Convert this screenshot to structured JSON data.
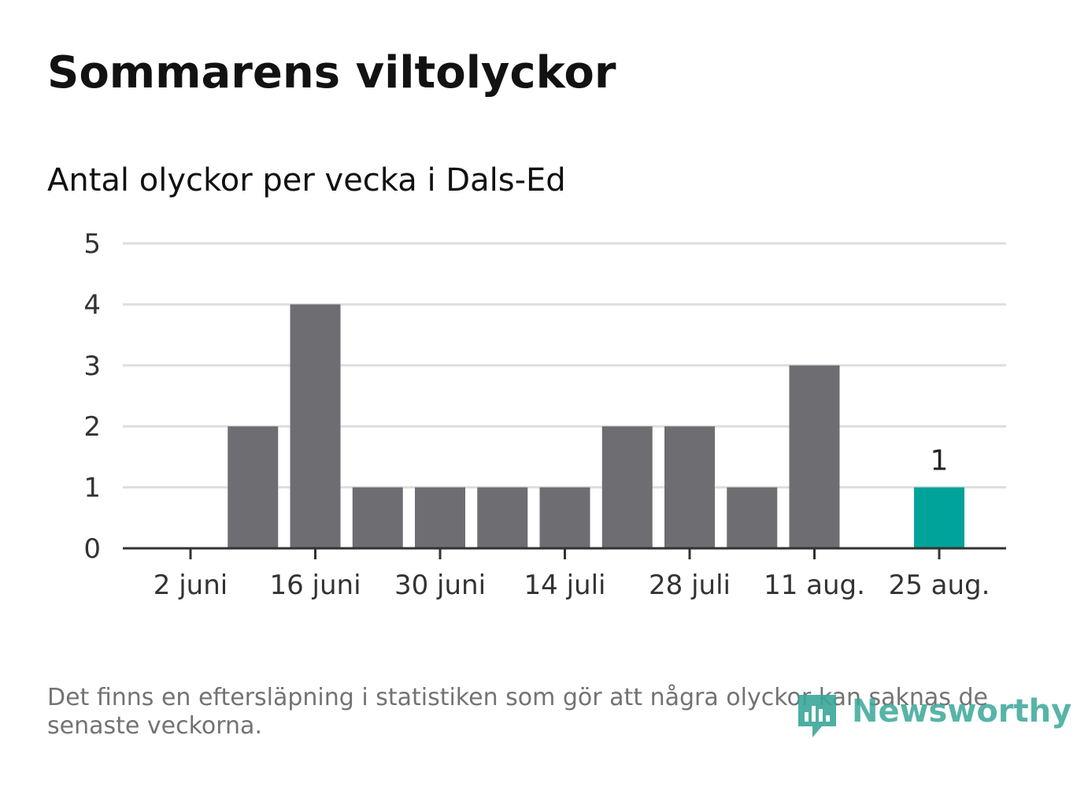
{
  "title": "Sommarens viltolyckor",
  "subtitle": "Antal olyckor per vecka i Dals-Ed",
  "footnote": "Det finns en eftersläpning i statistiken som gör att några olyckor kan saknas de senaste veckorna.",
  "logo": {
    "text": "Newsworthy",
    "icon": "newsworthy-logo-icon"
  },
  "colors": {
    "bar": "#6e6d72",
    "highlight": "#00a39a",
    "grid": "#dedede",
    "axis": "#333333"
  },
  "chart_data": {
    "type": "bar",
    "title": "Sommarens viltolyckor",
    "subtitle": "Antal olyckor per vecka i Dals-Ed",
    "xlabel": "",
    "ylabel": "",
    "weeks": [
      "2 juni",
      "9 juni",
      "16 juni",
      "23 juni",
      "30 juni",
      "7 juli",
      "14 juli",
      "21 juli",
      "28 juli",
      "4 aug.",
      "11 aug.",
      "18 aug.",
      "25 aug."
    ],
    "values": [
      0,
      2,
      4,
      1,
      1,
      1,
      1,
      2,
      2,
      1,
      3,
      0,
      1
    ],
    "x_tick_labels": [
      "2 juni",
      "16 juni",
      "30 juni",
      "14 juli",
      "28 juli",
      "11 aug.",
      "25 aug."
    ],
    "y_ticks": [
      0,
      1,
      2,
      3,
      4,
      5
    ],
    "ylim": [
      0,
      5
    ],
    "grid": true,
    "highlight_index": 12,
    "highlight_label": "1"
  }
}
